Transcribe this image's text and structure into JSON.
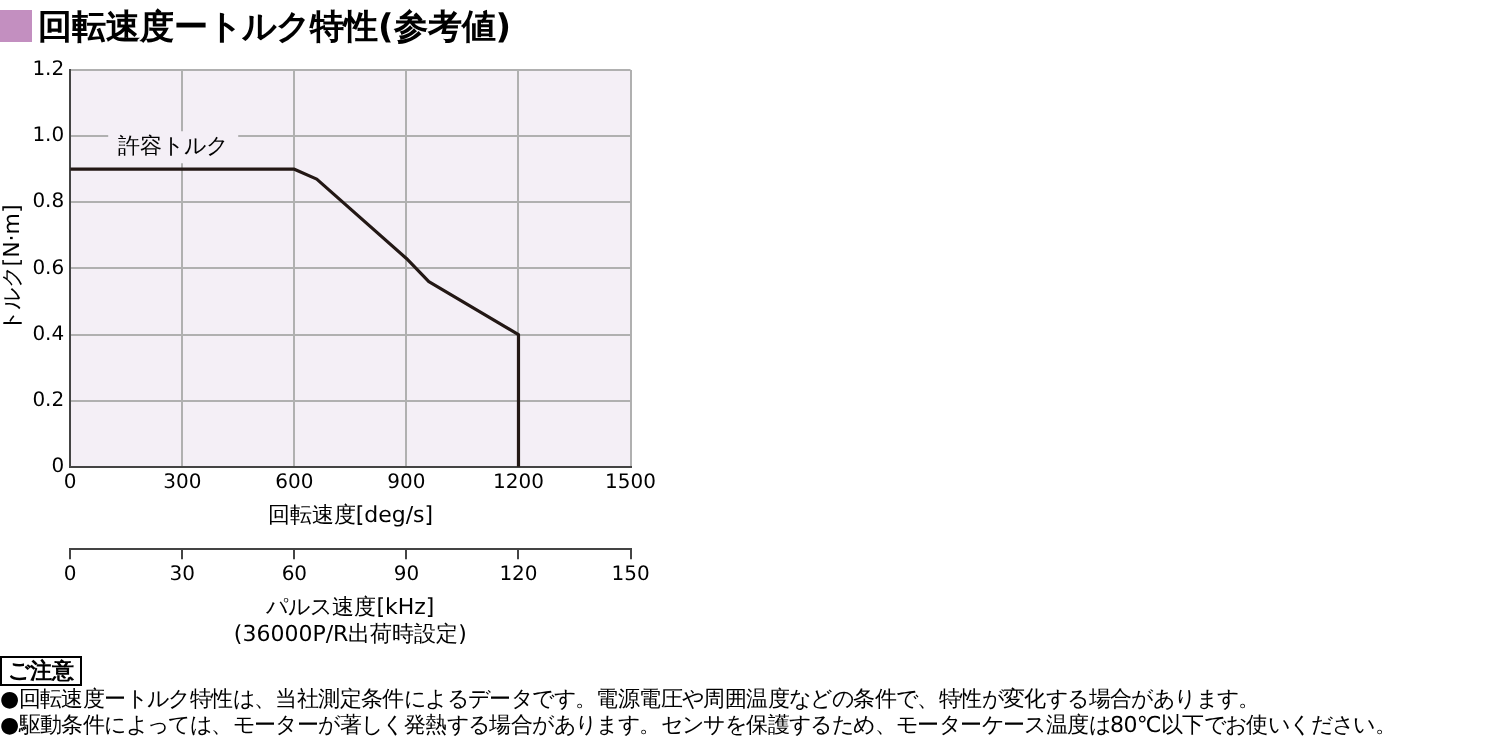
{
  "chart_data": {
    "type": "line",
    "title": "回転速度ートルク特性(参考値)",
    "xlabel": "回転速度[deg/s]",
    "ylabel": "トルク[N·m]",
    "x2label": "パルス速度[kHz]\n(36000P/R出荷時設定)",
    "series": [
      {
        "name": "許容トルク",
        "color": "#231815",
        "x": [
          0,
          600,
          660,
          900,
          960,
          1200,
          1200
        ],
        "values": [
          0.9,
          0.9,
          0.87,
          0.63,
          0.56,
          0.4,
          0
        ]
      }
    ],
    "xlim": [
      0,
      1500
    ],
    "xticks": [
      0,
      300,
      600,
      900,
      1200,
      1500
    ],
    "x2lim": [
      0,
      150
    ],
    "x2ticks": [
      0,
      30,
      60,
      90,
      120,
      150
    ],
    "ylim": [
      0,
      1.2
    ],
    "yticks": [
      0,
      0.2,
      0.4,
      0.6,
      0.8,
      {
        "value": 1,
        "label": "1.0"
      },
      1.2
    ],
    "grid": true,
    "legend": false,
    "marker": "none",
    "line_style": "solid",
    "annotations": [
      "ご注意",
      "●回転速度ートルク特性は、当社測定条件によるデータです。電源電圧や周囲温度などの条件で、特性が変化する場合があります。",
      "●駆動条件によっては、モーターが著しく発熱する場合があります。センサを保護するため、モーターケース温度は80℃以下でお使いください。"
    ]
  }
}
